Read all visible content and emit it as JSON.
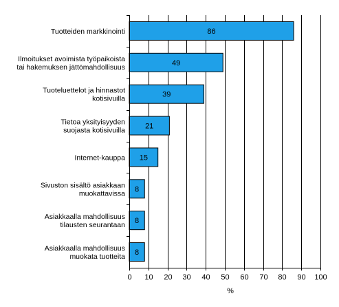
{
  "chart_data": {
    "type": "bar",
    "orientation": "horizontal",
    "categories": [
      [
        "Tuotteiden markkinointi"
      ],
      [
        "Ilmoitukset avoimista työpaikoista",
        "tai hakemuksen jättömahdollisuus"
      ],
      [
        "Tuoteluettelot ja hinnastot",
        "kotisivuilla"
      ],
      [
        "Tietoa yksityisyyden",
        "suojasta kotisivuilla"
      ],
      [
        "Internet-kauppa"
      ],
      [
        "Sivuston sisältö asiakkaan",
        "muokattavissa"
      ],
      [
        "Asiakkaalla mahdollisuus",
        "tilausten seurantaan"
      ],
      [
        "Asiakkaalla mahdollisuus",
        "muokata tuotteita"
      ]
    ],
    "values": [
      86,
      49,
      39,
      21,
      15,
      8,
      8,
      8
    ],
    "data_labels": [
      "86",
      "49",
      "39",
      "21",
      "15",
      "8",
      "8",
      "8"
    ],
    "xlabel": "%",
    "xlim": [
      0,
      100
    ],
    "xticks": [
      0,
      10,
      20,
      30,
      40,
      50,
      60,
      70,
      80,
      90,
      100
    ],
    "grid": "vertical",
    "legend": "none",
    "colors": {
      "bar": "#1fa0e8",
      "grid": "#000000"
    }
  }
}
